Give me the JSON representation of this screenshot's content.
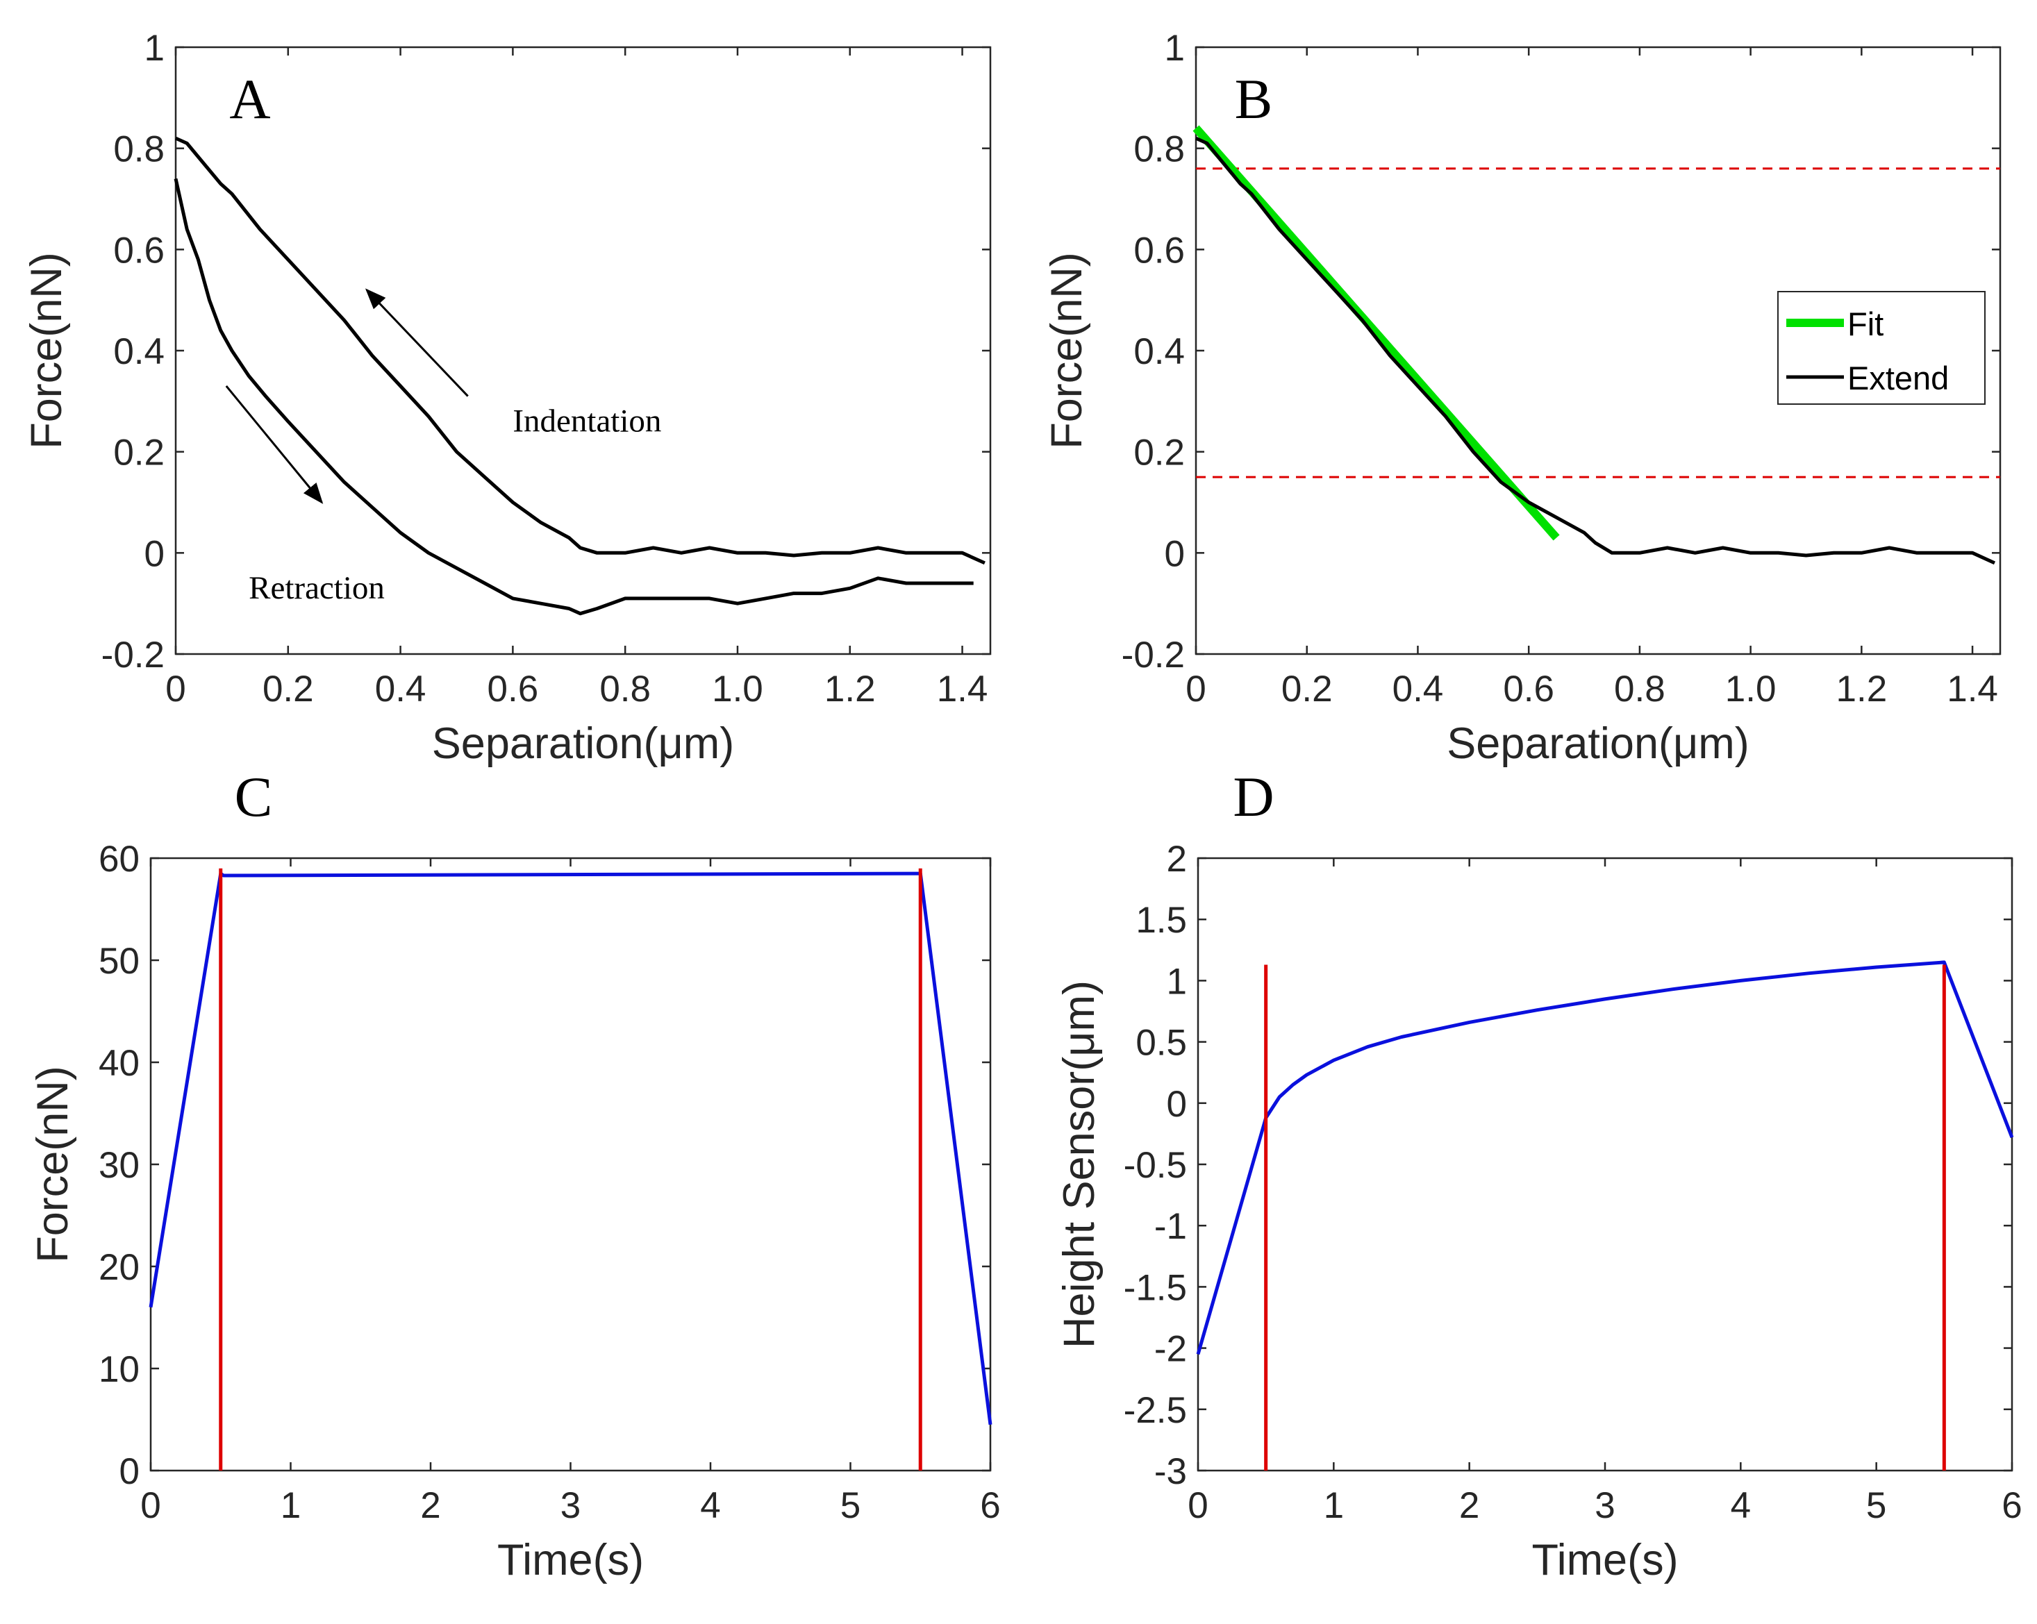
{
  "chart_data": [
    {
      "panel": "A",
      "type": "line",
      "xlabel": "Separation(μm)",
      "ylabel": "Force(nN)",
      "xlim": [
        0,
        1.45
      ],
      "ylim": [
        -0.2,
        1
      ],
      "xticks": [
        "0",
        "0.2",
        "0.4",
        "0.6",
        "0.8",
        "1.0",
        "1.2",
        "1.4"
      ],
      "xtick_values": [
        0,
        0.2,
        0.4,
        0.6,
        0.8,
        1.0,
        1.2,
        1.4
      ],
      "yticks": [
        "-0.2",
        "0",
        "0.2",
        "0.4",
        "0.6",
        "0.8",
        "1"
      ],
      "ytick_values": [
        -0.2,
        0,
        0.2,
        0.4,
        0.6,
        0.8,
        1
      ],
      "series": [
        {
          "color": "#000000",
          "x": [
            0,
            0.02,
            0.05,
            0.08,
            0.1,
            0.15,
            0.2,
            0.25,
            0.3,
            0.35,
            0.4,
            0.45,
            0.5,
            0.55,
            0.6,
            0.65,
            0.7,
            0.72,
            0.75,
            0.8,
            0.85,
            0.9,
            0.95,
            1.0,
            1.05,
            1.1,
            1.15,
            1.2,
            1.25,
            1.3,
            1.35,
            1.4,
            1.44
          ],
          "y": [
            0.82,
            0.81,
            0.77,
            0.73,
            0.71,
            0.64,
            0.58,
            0.52,
            0.46,
            0.39,
            0.33,
            0.27,
            0.2,
            0.15,
            0.1,
            0.06,
            0.03,
            0.01,
            0.0,
            0.0,
            0.01,
            0.0,
            0.01,
            0.0,
            0.0,
            -0.005,
            0.0,
            0.0,
            0.01,
            0.0,
            0.0,
            0.0,
            -0.02
          ]
        },
        {
          "color": "#000000",
          "x": [
            0,
            0.02,
            0.04,
            0.06,
            0.08,
            0.1,
            0.13,
            0.16,
            0.2,
            0.25,
            0.3,
            0.35,
            0.4,
            0.45,
            0.5,
            0.55,
            0.6,
            0.65,
            0.7,
            0.72,
            0.75,
            0.8,
            0.85,
            0.9,
            0.95,
            1.0,
            1.05,
            1.1,
            1.15,
            1.2,
            1.25,
            1.3,
            1.35,
            1.4,
            1.42
          ],
          "y": [
            0.74,
            0.64,
            0.58,
            0.5,
            0.44,
            0.4,
            0.35,
            0.31,
            0.26,
            0.2,
            0.14,
            0.09,
            0.04,
            0.0,
            -0.03,
            -0.06,
            -0.09,
            -0.1,
            -0.11,
            -0.12,
            -0.11,
            -0.09,
            -0.09,
            -0.09,
            -0.09,
            -0.1,
            -0.09,
            -0.08,
            -0.08,
            -0.07,
            -0.05,
            -0.06,
            -0.06,
            -0.06,
            -0.06
          ]
        }
      ],
      "annotations": [
        {
          "text": "Indentation",
          "x": 0.6,
          "y": 0.24
        },
        {
          "text": "Retraction",
          "x": 0.13,
          "y": -0.09
        }
      ],
      "arrows": [
        {
          "from": [
            0.52,
            0.31
          ],
          "to": [
            0.34,
            0.52
          ]
        },
        {
          "from": [
            0.09,
            0.33
          ],
          "to": [
            0.26,
            0.1
          ]
        }
      ]
    },
    {
      "panel": "B",
      "type": "line",
      "xlabel": "Separation(μm)",
      "ylabel": "Force(nN)",
      "xlim": [
        0,
        1.45
      ],
      "ylim": [
        -0.2,
        1
      ],
      "xticks": [
        "0",
        "0.2",
        "0.4",
        "0.6",
        "0.8",
        "1.0",
        "1.2",
        "1.4"
      ],
      "xtick_values": [
        0,
        0.2,
        0.4,
        0.6,
        0.8,
        1.0,
        1.2,
        1.4
      ],
      "yticks": [
        "-0.2",
        "0",
        "0.2",
        "0.4",
        "0.6",
        "0.8",
        "1"
      ],
      "ytick_values": [
        -0.2,
        0,
        0.2,
        0.4,
        0.6,
        0.8,
        1
      ],
      "legend": {
        "position": "right",
        "entries": [
          "Fit",
          "Extend"
        ]
      },
      "series": [
        {
          "name": "Fit",
          "color": "#00e000",
          "x": [
            0,
            0.65
          ],
          "y": [
            0.84,
            0.03
          ]
        },
        {
          "name": "Extend",
          "color": "#000000",
          "x": [
            0,
            0.02,
            0.05,
            0.08,
            0.1,
            0.15,
            0.2,
            0.25,
            0.3,
            0.35,
            0.4,
            0.45,
            0.5,
            0.55,
            0.6,
            0.65,
            0.7,
            0.72,
            0.75,
            0.8,
            0.85,
            0.9,
            0.95,
            1.0,
            1.05,
            1.1,
            1.15,
            1.2,
            1.25,
            1.3,
            1.35,
            1.4,
            1.44
          ],
          "y": [
            0.82,
            0.81,
            0.77,
            0.73,
            0.71,
            0.64,
            0.58,
            0.52,
            0.46,
            0.39,
            0.33,
            0.27,
            0.2,
            0.14,
            0.1,
            0.07,
            0.04,
            0.02,
            0.0,
            0.0,
            0.01,
            0.0,
            0.01,
            0.0,
            0.0,
            -0.005,
            0.0,
            0.0,
            0.01,
            0.0,
            0.0,
            0.0,
            -0.02
          ]
        }
      ],
      "hlines": [
        {
          "y": 0.76,
          "color": "#dd0000",
          "style": "dashed"
        },
        {
          "y": 0.15,
          "color": "#dd0000",
          "style": "dashed"
        }
      ]
    },
    {
      "panel": "C",
      "type": "line",
      "xlabel": "Time(s)",
      "ylabel": "Force(nN)",
      "xlim": [
        0,
        6
      ],
      "ylim": [
        0,
        60
      ],
      "xticks": [
        "0",
        "1",
        "2",
        "3",
        "4",
        "5",
        "6"
      ],
      "xtick_values": [
        0,
        1,
        2,
        3,
        4,
        5,
        6
      ],
      "yticks": [
        "0",
        "10",
        "20",
        "30",
        "40",
        "50",
        "60"
      ],
      "ytick_values": [
        0,
        10,
        20,
        30,
        40,
        50,
        60
      ],
      "series": [
        {
          "color": "#0a10dd",
          "x": [
            0,
            0.5,
            0.52,
            5.48,
            5.5,
            6.0
          ],
          "y": [
            16,
            58.5,
            58.3,
            58.5,
            58.5,
            4.5
          ]
        }
      ],
      "vlines": [
        {
          "x": 0.5,
          "y0": 0,
          "y1": 59,
          "color": "#dd0000"
        },
        {
          "x": 5.5,
          "y0": 0,
          "y1": 59,
          "color": "#dd0000"
        }
      ]
    },
    {
      "panel": "D",
      "type": "line",
      "xlabel": "Time(s)",
      "ylabel": "Height Sensor(μm)",
      "xlim": [
        0,
        6
      ],
      "ylim": [
        -3,
        2
      ],
      "xticks": [
        "0",
        "1",
        "2",
        "3",
        "4",
        "5",
        "6"
      ],
      "xtick_values": [
        0,
        1,
        2,
        3,
        4,
        5,
        6
      ],
      "yticks": [
        "-3",
        "-2.5",
        "-2",
        "-1.5",
        "-1",
        "-0.5",
        "0",
        "0.5",
        "1",
        "1.5",
        "2"
      ],
      "ytick_values": [
        -3,
        -2.5,
        -2,
        -1.5,
        -1,
        -0.5,
        0,
        0.5,
        1,
        1.5,
        2
      ],
      "series": [
        {
          "color": "#0a10dd",
          "x": [
            0,
            0.5,
            0.6,
            0.7,
            0.8,
            1.0,
            1.25,
            1.5,
            2.0,
            2.5,
            3.0,
            3.5,
            4.0,
            4.5,
            5.0,
            5.5,
            6.0
          ],
          "y": [
            -2.05,
            -0.12,
            0.05,
            0.15,
            0.23,
            0.35,
            0.46,
            0.54,
            0.66,
            0.76,
            0.85,
            0.93,
            1.0,
            1.06,
            1.11,
            1.15,
            -0.28
          ]
        }
      ],
      "vlines": [
        {
          "x": 0.5,
          "y0": -3,
          "y1": 1.13,
          "color": "#dd0000"
        },
        {
          "x": 5.5,
          "y0": -3,
          "y1": 1.13,
          "color": "#dd0000"
        }
      ]
    }
  ]
}
